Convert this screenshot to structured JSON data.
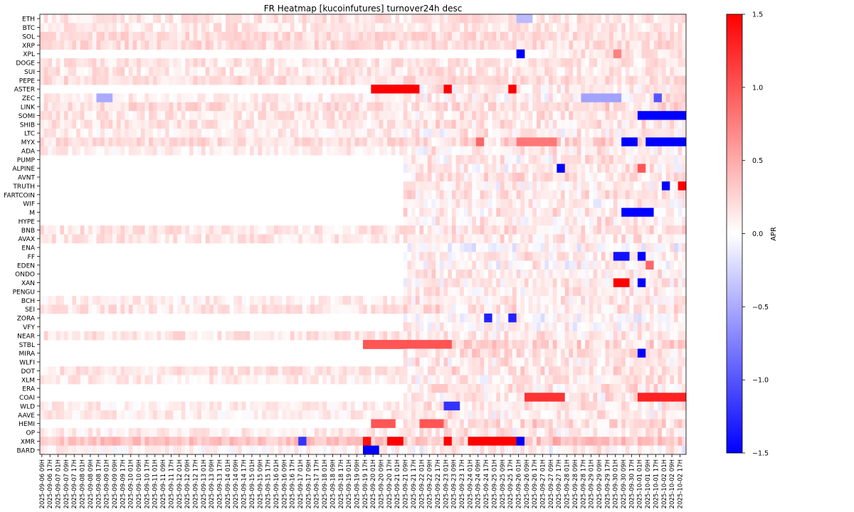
{
  "chart_data": {
    "type": "heatmap",
    "title": "FR Heatmap [kucoinfutures] turnover24h desc",
    "colorbar": {
      "label": "APR",
      "min": -1.5,
      "max": 1.5,
      "ticks": [
        "1.5",
        "1.0",
        "0.5",
        "0.0",
        "−0.5",
        "−1.0",
        "−1.5"
      ],
      "tick_values": [
        1.5,
        1.0,
        0.5,
        0.0,
        -0.5,
        -1.0,
        -1.5
      ],
      "colormap": "bwr",
      "color_low": "#0000ff",
      "color_mid": "#ffffff",
      "color_high": "#ff0000"
    },
    "y_categories": [
      "ETH",
      "BTC",
      "SOL",
      "XRP",
      "XPL",
      "DOGE",
      "SUI",
      "PEPE",
      "ASTER",
      "ZEC",
      "LINK",
      "SOMI",
      "SHIB",
      "LTC",
      "MYX",
      "ADA",
      "PUMP",
      "ALPINE",
      "AVNT",
      "TRUTH",
      "FARTCOIN",
      "WIF",
      "M",
      "HYPE",
      "BNB",
      "AVAX",
      "ENA",
      "FF",
      "EDEN",
      "ONDO",
      "XAN",
      "PENGU",
      "BCH",
      "SEI",
      "ZORA",
      "VFY",
      "NEAR",
      "STBL",
      "MIRA",
      "WLFI",
      "DOT",
      "XLM",
      "ERA",
      "COAI",
      "WLD",
      "AAVE",
      "HEMI",
      "OP",
      "XMR",
      "BARD"
    ],
    "x_categories": [
      "2025-09-06 09H",
      "2025-09-06 17H",
      "2025-09-07 01H",
      "2025-09-07 09H",
      "2025-09-07 17H",
      "2025-09-08 01H",
      "2025-09-08 09H",
      "2025-09-08 17H",
      "2025-09-09 01H",
      "2025-09-09 09H",
      "2025-09-09 17H",
      "2025-09-10 01H",
      "2025-09-10 09H",
      "2025-09-10 17H",
      "2025-09-11 01H",
      "2025-09-11 09H",
      "2025-09-11 17H",
      "2025-09-12 01H",
      "2025-09-12 09H",
      "2025-09-12 17H",
      "2025-09-13 01H",
      "2025-09-13 09H",
      "2025-09-13 17H",
      "2025-09-14 01H",
      "2025-09-14 09H",
      "2025-09-14 17H",
      "2025-09-15 01H",
      "2025-09-15 09H",
      "2025-09-15 17H",
      "2025-09-16 01H",
      "2025-09-16 09H",
      "2025-09-16 17H",
      "2025-09-17 01H",
      "2025-09-17 09H",
      "2025-09-17 17H",
      "2025-09-18 01H",
      "2025-09-18 09H",
      "2025-09-18 17H",
      "2025-09-19 01H",
      "2025-09-19 09H",
      "2025-09-19 17H",
      "2025-09-20 01H",
      "2025-09-20 09H",
      "2025-09-20 17H",
      "2025-09-21 01H",
      "2025-09-21 09H",
      "2025-09-21 17H",
      "2025-09-22 01H",
      "2025-09-22 09H",
      "2025-09-22 17H",
      "2025-09-23 01H",
      "2025-09-23 09H",
      "2025-09-23 17H",
      "2025-09-24 01H",
      "2025-09-24 09H",
      "2025-09-24 17H",
      "2025-09-25 01H",
      "2025-09-25 09H",
      "2025-09-25 17H",
      "2025-09-26 01H",
      "2025-09-26 09H",
      "2025-09-26 17H",
      "2025-09-27 01H",
      "2025-09-27 09H",
      "2025-09-27 17H",
      "2025-09-28 01H",
      "2025-09-28 09H",
      "2025-09-28 17H",
      "2025-09-29 01H",
      "2025-09-29 09H",
      "2025-09-29 17H",
      "2025-09-30 01H",
      "2025-09-30 09H",
      "2025-09-30 17H",
      "2025-10-01 01H",
      "2025-10-01 09H",
      "2025-10-01 17H",
      "2025-10-02 01H",
      "2025-10-02 09H",
      "2025-10-02 17H"
    ],
    "x_cells_per_label": 2,
    "row_start_col": [
      0,
      0,
      0,
      0,
      62,
      0,
      0,
      0,
      45,
      0,
      0,
      0,
      0,
      0,
      0,
      0,
      45,
      45,
      45,
      45,
      45,
      45,
      45,
      45,
      0,
      0,
      45,
      45,
      45,
      45,
      45,
      45,
      0,
      0,
      45,
      45,
      0,
      45,
      45,
      45,
      0,
      0,
      45,
      45,
      0,
      0,
      45,
      0,
      0,
      0
    ],
    "base_levels": [
      0.15,
      0.15,
      0.2,
      0.2,
      0.15,
      0.15,
      0.15,
      0.2,
      0.15,
      0.1,
      0.2,
      0.15,
      0.15,
      0.1,
      0.2,
      0.1,
      0.1,
      0.1,
      0.15,
      0.1,
      0.15,
      0.05,
      0.1,
      0.1,
      0.15,
      0.15,
      0.0,
      0.1,
      0.05,
      0.1,
      0.1,
      0.1,
      0.1,
      0.15,
      0.0,
      0.05,
      0.15,
      0.25,
      0.15,
      0.1,
      0.15,
      0.1,
      0.15,
      0.15,
      0.1,
      0.1,
      0.2,
      0.1,
      0.35,
      0.05
    ],
    "highlights": [
      {
        "row": "ETH",
        "from": "2025-09-26 01H",
        "to": "2025-09-26 09H",
        "value": -0.4
      },
      {
        "row": "XPL",
        "from": "2025-09-26 01H",
        "to": "2025-09-26 01H",
        "value": -1.5
      },
      {
        "row": "XPL",
        "from": "2025-09-30 01H",
        "to": "2025-09-30 01H",
        "value": 0.75
      },
      {
        "row": "ASTER",
        "from": "2025-09-20 01H",
        "to": "2025-09-21 17H",
        "value": 1.5
      },
      {
        "row": "ASTER",
        "from": "2025-09-23 01H",
        "to": "2025-09-23 01H",
        "value": 1.5
      },
      {
        "row": "ASTER",
        "from": "2025-09-25 17H",
        "to": "2025-09-25 17H",
        "value": 1.5
      },
      {
        "row": "ZEC",
        "from": "2025-09-08 17H",
        "to": "2025-09-09 01H",
        "value": -0.5
      },
      {
        "row": "ZEC",
        "from": "2025-09-28 17H",
        "to": "2025-09-30 01H",
        "value": -0.55
      },
      {
        "row": "ZEC",
        "from": "2025-10-01 17H",
        "to": "2025-10-01 17H",
        "value": -1.0
      },
      {
        "row": "SOMI",
        "from": "2025-10-01 01H",
        "to": "2025-10-02 17H",
        "value": -1.5
      },
      {
        "row": "MYX",
        "from": "2025-09-24 09H",
        "to": "2025-09-24 09H",
        "value": 0.9
      },
      {
        "row": "MYX",
        "from": "2025-09-26 01H",
        "to": "2025-09-27 09H",
        "value": 0.8
      },
      {
        "row": "MYX",
        "from": "2025-09-30 09H",
        "to": "2025-09-30 17H",
        "value": -1.5
      },
      {
        "row": "MYX",
        "from": "2025-10-01 09H",
        "to": "2025-10-02 17H",
        "value": -1.5
      },
      {
        "row": "ALPINE",
        "from": "2025-09-27 17H",
        "to": "2025-09-27 17H",
        "value": -1.5
      },
      {
        "row": "ALPINE",
        "from": "2025-10-01 01H",
        "to": "2025-10-01 01H",
        "value": 1.0
      },
      {
        "row": "TRUTH",
        "from": "2025-10-02 01H",
        "to": "2025-10-02 01H",
        "value": -1.5
      },
      {
        "row": "TRUTH",
        "from": "2025-10-02 17H",
        "to": "2025-10-02 17H",
        "value": 1.5
      },
      {
        "row": "M",
        "from": "2025-09-30 09H",
        "to": "2025-10-01 09H",
        "value": -1.5
      },
      {
        "row": "FF",
        "from": "2025-09-30 01H",
        "to": "2025-09-30 09H",
        "value": -1.4
      },
      {
        "row": "FF",
        "from": "2025-10-01 01H",
        "to": "2025-10-01 01H",
        "value": -1.5
      },
      {
        "row": "EDEN",
        "from": "2025-10-01 09H",
        "to": "2025-10-01 09H",
        "value": 0.9
      },
      {
        "row": "XAN",
        "from": "2025-09-30 01H",
        "to": "2025-09-30 09H",
        "value": 1.5
      },
      {
        "row": "XAN",
        "from": "2025-10-01 01H",
        "to": "2025-10-01 01H",
        "value": -1.5
      },
      {
        "row": "ZORA",
        "from": "2025-09-24 17H",
        "to": "2025-09-24 17H",
        "value": -1.3
      },
      {
        "row": "ZORA",
        "from": "2025-09-25 17H",
        "to": "2025-09-25 17H",
        "value": -1.3
      },
      {
        "row": "STBL",
        "from": "2025-09-19 17H",
        "to": "2025-09-23 01H",
        "value": 1.0
      },
      {
        "row": "MIRA",
        "from": "2025-10-01 01H",
        "to": "2025-10-01 01H",
        "value": -1.5
      },
      {
        "row": "COAI",
        "from": "2025-09-26 09H",
        "to": "2025-09-27 17H",
        "value": 1.2
      },
      {
        "row": "COAI",
        "from": "2025-10-01 01H",
        "to": "2025-10-02 17H",
        "value": 1.3
      },
      {
        "row": "WLD",
        "from": "2025-09-23 01H",
        "to": "2025-09-23 09H",
        "value": -1.2
      },
      {
        "row": "HEMI",
        "from": "2025-09-20 01H",
        "to": "2025-09-20 17H",
        "value": 1.0
      },
      {
        "row": "HEMI",
        "from": "2025-09-22 01H",
        "to": "2025-09-22 17H",
        "value": 1.0
      },
      {
        "row": "XMR",
        "from": "2025-09-17 01H",
        "to": "2025-09-17 01H",
        "value": -1.2
      },
      {
        "row": "XMR",
        "from": "2025-09-19 17H",
        "to": "2025-09-19 17H",
        "value": 1.4
      },
      {
        "row": "XMR",
        "from": "2025-09-20 17H",
        "to": "2025-09-21 01H",
        "value": 1.5
      },
      {
        "row": "XMR",
        "from": "2025-09-23 01H",
        "to": "2025-09-23 01H",
        "value": 1.5
      },
      {
        "row": "XMR",
        "from": "2025-09-24 01H",
        "to": "2025-09-25 17H",
        "value": 1.5
      },
      {
        "row": "XMR",
        "from": "2025-09-26 01H",
        "to": "2025-09-26 01H",
        "value": -1.5
      },
      {
        "row": "BARD",
        "from": "2025-09-19 17H",
        "to": "2025-09-20 01H",
        "value": -1.5
      }
    ]
  }
}
